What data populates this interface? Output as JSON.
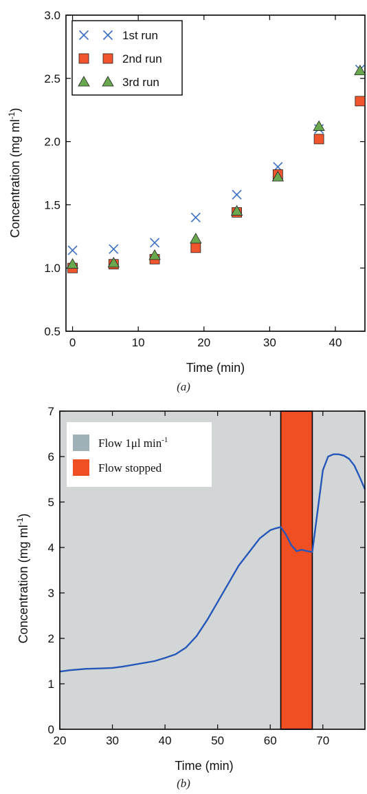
{
  "chart_data": [
    {
      "type": "scatter",
      "title": "",
      "xlabel": "Time (min)",
      "ylabel_text": "Concentration (mg ml",
      "ylabel_sup": "-1",
      "ylabel_close": ")",
      "xlim": [
        -1,
        44.5
      ],
      "ylim": [
        0.5,
        3.0
      ],
      "xticks": [
        0,
        10,
        20,
        30,
        40
      ],
      "xtick_labels": [
        "0",
        "10",
        "20",
        "30",
        "40"
      ],
      "yticks": [
        0.5,
        1.0,
        1.5,
        2.0,
        2.5,
        3.0
      ],
      "ytick_labels": [
        "0.5",
        "1.0",
        "1.5",
        "2.0",
        "2.5",
        "3.0"
      ],
      "grid": false,
      "legend_position": "top-left",
      "series": [
        {
          "name": "1st run",
          "marker": "x",
          "color": "#3a6fc4",
          "x": [
            0,
            6.25,
            12.5,
            18.75,
            25,
            31.25,
            37.5,
            43.75
          ],
          "y": [
            1.14,
            1.15,
            1.2,
            1.4,
            1.58,
            1.8,
            2.1,
            2.57
          ]
        },
        {
          "name": "2nd run",
          "marker": "square",
          "color": "#f0552e",
          "x": [
            0,
            6.25,
            12.5,
            18.75,
            25,
            31.25,
            37.5,
            43.75
          ],
          "y": [
            1.0,
            1.03,
            1.07,
            1.16,
            1.44,
            1.74,
            2.02,
            2.32
          ]
        },
        {
          "name": "3rd run",
          "marker": "triangle",
          "color": "#6aa84f",
          "x": [
            0,
            6.25,
            12.5,
            18.75,
            25,
            31.25,
            37.5,
            43.75
          ],
          "y": [
            1.03,
            1.04,
            1.1,
            1.23,
            1.45,
            1.72,
            2.12,
            2.56
          ]
        }
      ]
    },
    {
      "type": "line",
      "title": "",
      "xlabel": "Time (min)",
      "ylabel_text": "Concentration (mg ml",
      "ylabel_sup": "-1",
      "ylabel_close": ")",
      "xlim": [
        20,
        78
      ],
      "ylim": [
        0,
        7
      ],
      "xticks": [
        20,
        30,
        40,
        50,
        60,
        70
      ],
      "xtick_labels": [
        "20",
        "30",
        "40",
        "50",
        "60",
        "70"
      ],
      "yticks": [
        0,
        1,
        2,
        3,
        4,
        5,
        6,
        7
      ],
      "ytick_labels": [
        "0",
        "1",
        "2",
        "3",
        "4",
        "5",
        "6",
        "7"
      ],
      "grid": false,
      "background": "#d2d6d7",
      "legend_position": "top-left",
      "legend": [
        {
          "text": "Flow 1",
          "unit": "μl min",
          "sup": "-1",
          "color": "#9fb1b6"
        },
        {
          "text": "Flow stopped",
          "unit": "",
          "sup": "",
          "color": "#f04e23"
        }
      ],
      "flow_stopped_region": [
        62,
        68
      ],
      "series": [
        {
          "color": "#2556b8",
          "x": [
            20,
            22,
            25,
            28,
            30,
            32,
            35,
            38,
            40,
            42,
            44,
            46,
            48,
            50,
            52,
            54,
            56,
            58,
            60,
            61,
            62,
            63,
            64,
            65,
            66,
            67,
            68,
            69,
            70,
            71,
            72,
            73,
            74,
            75,
            76,
            77,
            78
          ],
          "y": [
            1.27,
            1.3,
            1.33,
            1.34,
            1.35,
            1.38,
            1.44,
            1.5,
            1.57,
            1.65,
            1.8,
            2.05,
            2.4,
            2.8,
            3.2,
            3.6,
            3.9,
            4.2,
            4.38,
            4.42,
            4.45,
            4.28,
            4.05,
            3.92,
            3.95,
            3.92,
            3.9,
            4.8,
            5.7,
            6.0,
            6.05,
            6.05,
            6.02,
            5.95,
            5.8,
            5.55,
            5.28
          ]
        }
      ]
    }
  ],
  "panel_labels": {
    "a": "(a)",
    "b": "(b)"
  }
}
